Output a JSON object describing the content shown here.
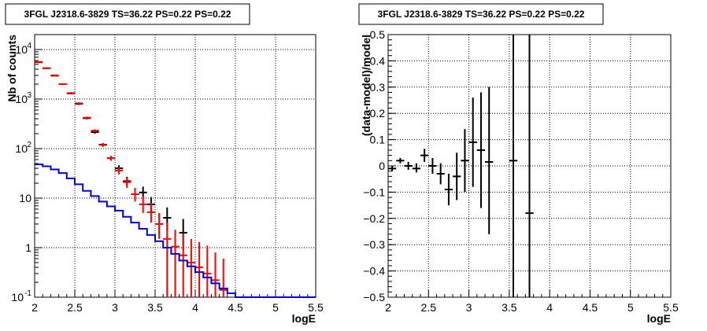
{
  "chart_data": [
    {
      "type": "scatter",
      "title": "3FGL J2318.6-3829 TS=36.22 PS=0.22 PS=0.22",
      "xlabel": "logE",
      "ylabel": "Nb of counts",
      "xlim": [
        2,
        5.5
      ],
      "ylim": [
        0.1,
        20000
      ],
      "yscale": "log",
      "grid": true,
      "x_ticks": [
        "2",
        "2.5",
        "3",
        "3.5",
        "4",
        "4.5",
        "5",
        "5.5"
      ],
      "y_ticks": [
        {
          "v": 0.1,
          "label": "10",
          "exp": "-1"
        },
        {
          "v": 1,
          "label": "1",
          "exp": ""
        },
        {
          "v": 10,
          "label": "10",
          "exp": ""
        },
        {
          "v": 100,
          "label": "10",
          "exp": "2"
        },
        {
          "v": 1000,
          "label": "10",
          "exp": "3"
        },
        {
          "v": 10000,
          "label": "10",
          "exp": "4"
        }
      ],
      "series": [
        {
          "color": "#000000",
          "style": "errorbar",
          "points": [
            {
              "x": 2.05,
              "y": 5600,
              "lo": 5450,
              "hi": 5750
            },
            {
              "x": 2.15,
              "y": 4200,
              "lo": 4100,
              "hi": 4300
            },
            {
              "x": 2.25,
              "y": 3000,
              "lo": 2900,
              "hi": 3100
            },
            {
              "x": 2.35,
              "y": 2000,
              "lo": 1920,
              "hi": 2080
            },
            {
              "x": 2.45,
              "y": 1300,
              "lo": 1240,
              "hi": 1360
            },
            {
              "x": 2.55,
              "y": 800,
              "lo": 760,
              "hi": 840
            },
            {
              "x": 2.65,
              "y": 410,
              "lo": 390,
              "hi": 430
            },
            {
              "x": 2.75,
              "y": 215,
              "lo": 200,
              "hi": 230
            },
            {
              "x": 2.85,
              "y": 120,
              "lo": 110,
              "hi": 130
            },
            {
              "x": 2.95,
              "y": 64,
              "lo": 57,
              "hi": 71
            },
            {
              "x": 3.05,
              "y": 40,
              "lo": 34,
              "hi": 46
            },
            {
              "x": 3.15,
              "y": 22,
              "lo": 18,
              "hi": 27
            },
            {
              "x": 3.25,
              "y": 12,
              "lo": 9,
              "hi": 16
            },
            {
              "x": 3.35,
              "y": 13,
              "lo": 9.5,
              "hi": 17
            },
            {
              "x": 3.45,
              "y": 7.5,
              "lo": 5,
              "hi": 10.5
            },
            {
              "x": 3.65,
              "y": 4,
              "lo": 2.2,
              "hi": 6.5
            },
            {
              "x": 3.85,
              "y": 2,
              "lo": 0.9,
              "hi": 3.8
            }
          ]
        },
        {
          "color": "#ff0000",
          "style": "errorbar",
          "points": [
            {
              "x": 2.05,
              "y": 5500,
              "lo": 5350,
              "hi": 5650
            },
            {
              "x": 2.15,
              "y": 4150,
              "lo": 4050,
              "hi": 4250
            },
            {
              "x": 2.25,
              "y": 2950,
              "lo": 2850,
              "hi": 3050
            },
            {
              "x": 2.35,
              "y": 2000,
              "lo": 1920,
              "hi": 2080
            },
            {
              "x": 2.45,
              "y": 1320,
              "lo": 1260,
              "hi": 1380
            },
            {
              "x": 2.55,
              "y": 820,
              "lo": 780,
              "hi": 860
            },
            {
              "x": 2.65,
              "y": 420,
              "lo": 400,
              "hi": 440
            },
            {
              "x": 2.75,
              "y": 230,
              "lo": 215,
              "hi": 245
            },
            {
              "x": 2.85,
              "y": 118,
              "lo": 108,
              "hi": 128
            },
            {
              "x": 2.95,
              "y": 64,
              "lo": 57,
              "hi": 71
            },
            {
              "x": 3.05,
              "y": 36,
              "lo": 30,
              "hi": 42
            },
            {
              "x": 3.15,
              "y": 21,
              "lo": 16,
              "hi": 26
            },
            {
              "x": 3.25,
              "y": 12,
              "lo": 8.5,
              "hi": 16
            },
            {
              "x": 3.35,
              "y": 7.5,
              "lo": 5,
              "hi": 11
            },
            {
              "x": 3.45,
              "y": 5.2,
              "lo": 3.2,
              "hi": 8
            },
            {
              "x": 3.55,
              "y": 3,
              "lo": 1.5,
              "hi": 5
            },
            {
              "x": 3.65,
              "y": 1.5,
              "lo": 0.1,
              "hi": 3.2
            },
            {
              "x": 3.75,
              "y": 1.05,
              "lo": 0.1,
              "hi": 2.3
            },
            {
              "x": 3.85,
              "y": 0.7,
              "lo": 0.1,
              "hi": 1.9
            },
            {
              "x": 3.95,
              "y": 0.5,
              "lo": 0.1,
              "hi": 1.5
            },
            {
              "x": 4.05,
              "y": 0.4,
              "lo": 0.1,
              "hi": 1.3
            },
            {
              "x": 4.15,
              "y": 0.3,
              "lo": 0.1,
              "hi": 1.1
            },
            {
              "x": 4.25,
              "y": 0.22,
              "lo": 0.1,
              "hi": 0.8
            },
            {
              "x": 4.35,
              "y": 0.14,
              "lo": 0.1,
              "hi": 0.6
            }
          ]
        },
        {
          "color": "#0000dd",
          "style": "step",
          "edges": [
            2.0,
            2.1,
            2.2,
            2.3,
            2.4,
            2.5,
            2.6,
            2.7,
            2.8,
            2.9,
            3.0,
            3.1,
            3.2,
            3.3,
            3.4,
            3.5,
            3.6,
            3.7,
            3.8,
            3.9,
            4.0,
            4.1,
            4.2,
            4.3,
            4.4,
            4.5,
            5.5
          ],
          "values": [
            48,
            44,
            38,
            32,
            25,
            19,
            14,
            11,
            8.5,
            6.8,
            5.6,
            4.2,
            3.2,
            2.4,
            1.8,
            1.35,
            1.0,
            0.75,
            0.55,
            0.42,
            0.32,
            0.25,
            0.19,
            0.15,
            0.12,
            0.1
          ]
        }
      ]
    },
    {
      "type": "scatter",
      "title": "3FGL J2318.6-3829 TS=36.22 PS=0.22 PS=0.22",
      "xlabel": "logE",
      "ylabel": "(data-model)/model",
      "xlim": [
        2,
        5.5
      ],
      "ylim": [
        -0.5,
        0.5
      ],
      "grid": true,
      "x_ticks": [
        "2",
        "2.5",
        "3",
        "3.5",
        "4",
        "4.5",
        "5",
        "5.5"
      ],
      "y_ticks": [
        "−0.5",
        "−0.4",
        "−0.3",
        "−0.2",
        "−0.1",
        "0",
        "0.1",
        "0.2",
        "0.3",
        "0.4",
        "0.5"
      ],
      "y_tick_values": [
        -0.5,
        -0.4,
        -0.3,
        -0.2,
        -0.1,
        0,
        0.1,
        0.2,
        0.3,
        0.4,
        0.5
      ],
      "series": [
        {
          "color": "#000000",
          "style": "errorbar",
          "points": [
            {
              "x": 2.05,
              "y": -0.01,
              "lo": -0.02,
              "hi": 0.0
            },
            {
              "x": 2.15,
              "y": 0.02,
              "lo": 0.01,
              "hi": 0.03
            },
            {
              "x": 2.25,
              "y": 0.0,
              "lo": -0.015,
              "hi": 0.015
            },
            {
              "x": 2.35,
              "y": -0.01,
              "lo": -0.025,
              "hi": 0.01
            },
            {
              "x": 2.45,
              "y": 0.04,
              "lo": 0.015,
              "hi": 0.065
            },
            {
              "x": 2.55,
              "y": 0.0,
              "lo": -0.03,
              "hi": 0.03
            },
            {
              "x": 2.65,
              "y": -0.03,
              "lo": -0.07,
              "hi": 0.01
            },
            {
              "x": 2.75,
              "y": -0.09,
              "lo": -0.15,
              "hi": -0.03
            },
            {
              "x": 2.85,
              "y": -0.04,
              "lo": -0.13,
              "hi": 0.05
            },
            {
              "x": 2.95,
              "y": 0.02,
              "lo": -0.1,
              "hi": 0.14
            },
            {
              "x": 3.05,
              "y": 0.09,
              "lo": -0.08,
              "hi": 0.26
            },
            {
              "x": 3.15,
              "y": 0.06,
              "lo": -0.16,
              "hi": 0.28
            },
            {
              "x": 3.25,
              "y": 0.015,
              "lo": -0.26,
              "hi": 0.3
            },
            {
              "x": 3.55,
              "y": 0.02,
              "lo": -0.5,
              "hi": 0.5
            },
            {
              "x": 3.75,
              "y": -0.18,
              "lo": -0.5,
              "hi": 0.5
            }
          ]
        }
      ]
    }
  ]
}
